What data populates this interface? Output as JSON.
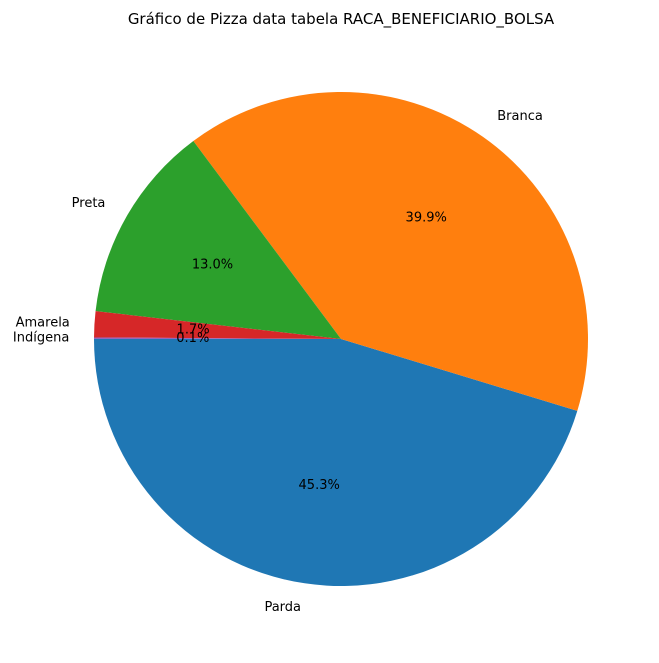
{
  "chart_data": {
    "type": "pie",
    "title": "Gráfico de Pizza data tabela RACA_BENEFICIARIO_BOLSA",
    "slices": [
      {
        "label": "Parda",
        "value": 45.3,
        "pct_label": "45.3%",
        "color": "#1f77b4"
      },
      {
        "label": "Branca",
        "value": 39.9,
        "pct_label": "39.9%",
        "color": "#ff7f0e"
      },
      {
        "label": "Preta",
        "value": 13.0,
        "pct_label": "13.0%",
        "color": "#2ca02c"
      },
      {
        "label": "Amarela",
        "value": 1.7,
        "pct_label": "1.7%",
        "color": "#d62728"
      },
      {
        "label": "Indígena",
        "value": 0.1,
        "pct_label": "0.1%",
        "color": "#9467bd"
      }
    ],
    "start_angle_deg": 180,
    "direction": "counterclockwise",
    "legend": "none"
  }
}
